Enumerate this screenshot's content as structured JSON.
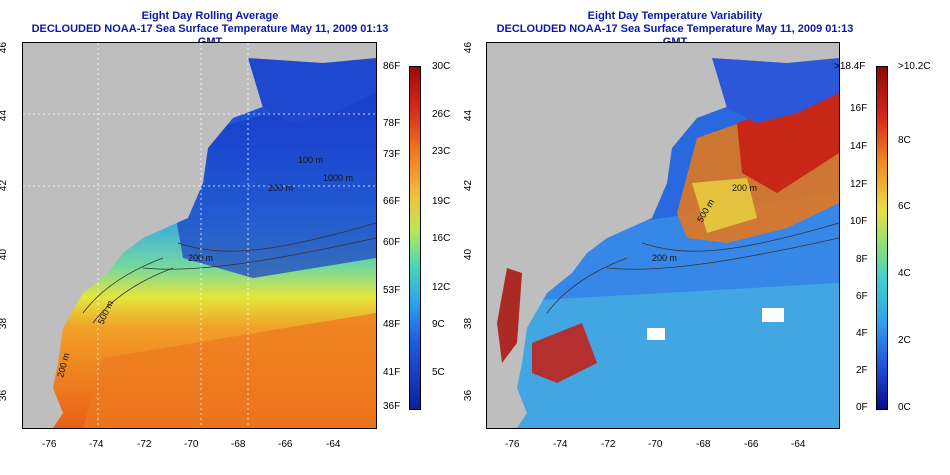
{
  "left_panel": {
    "title_line1": "Eight Day Rolling Average",
    "title_line2": "DECLOUDED NOAA-17 Sea Surface Temperature May 11, 2009 01:13 GMT",
    "x_ticks": [
      "-76",
      "-74",
      "-72",
      "-70",
      "-68",
      "-66",
      "-64"
    ],
    "y_ticks": [
      "36",
      "38",
      "40",
      "42",
      "44",
      "46"
    ],
    "colorbar_f": [
      "86F",
      "78F",
      "73F",
      "66F",
      "60F",
      "53F",
      "48F",
      "41F",
      "36F"
    ],
    "colorbar_c": [
      "30C",
      "26C",
      "23C",
      "19C",
      "16C",
      "12C",
      "9C",
      "5C"
    ],
    "contour_labels": [
      "200 m",
      "500 m",
      "200 m",
      "100 m",
      "200 m",
      "1000 m"
    ],
    "colors": [
      "#08088a",
      "#1a4fd6",
      "#2b8ee8",
      "#3cc7e8",
      "#7fe07a",
      "#e6e83a",
      "#f0a020",
      "#e85a18",
      "#a80f0f"
    ]
  },
  "right_panel": {
    "title_line1": "Eight Day Temperature Variability",
    "title_line2": "DECLOUDED NOAA-17 Sea Surface Temperature May 11, 2009 01:13 GMT",
    "x_ticks": [
      "-76",
      "-74",
      "-72",
      "-70",
      "-68",
      "-66",
      "-64"
    ],
    "y_ticks": [
      "36",
      "38",
      "40",
      "42",
      "44",
      "46"
    ],
    "colorbar_f": [
      ">18.4F",
      "16F",
      "14F",
      "12F",
      "10F",
      "8F",
      "6F",
      "4F",
      "2F",
      "0F"
    ],
    "colorbar_c": [
      ">10.2C",
      "8C",
      "6C",
      "4C",
      "2C",
      "0C"
    ],
    "contour_labels": [
      "200 m",
      "500 m",
      "200 m"
    ]
  },
  "land_color": "#bebebe"
}
